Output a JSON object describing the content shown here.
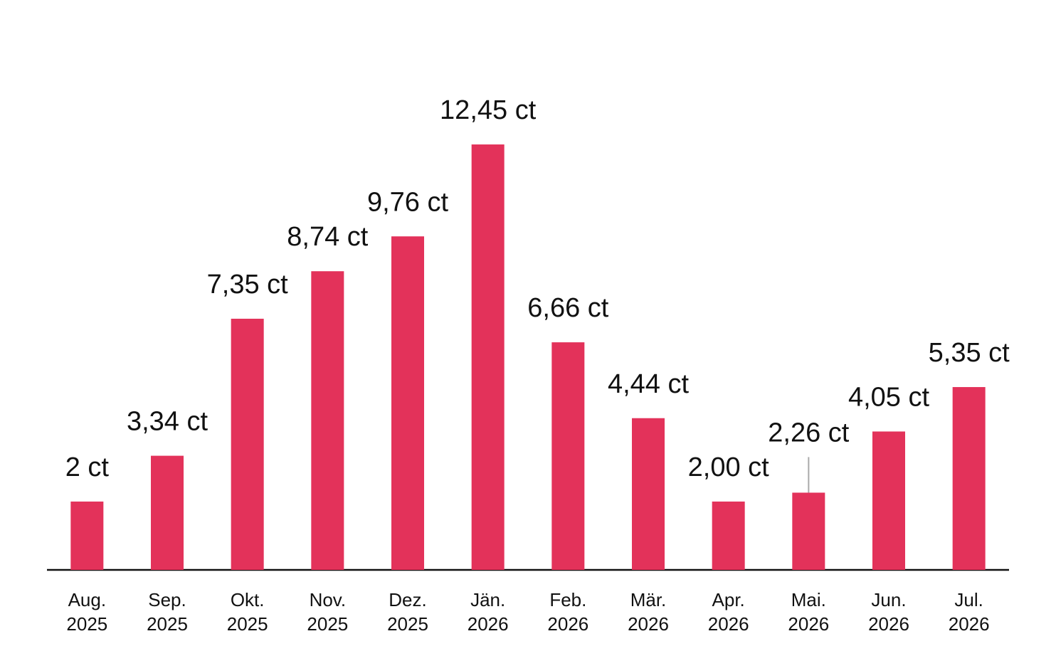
{
  "chart_data": {
    "type": "bar",
    "categories": [
      "Aug.\n2025",
      "Sep.\n2025",
      "Okt.\n2025",
      "Nov.\n2025",
      "Dez.\n2025",
      "Jän.\n2026",
      "Feb.\n2026",
      "Mär.\n2026",
      "Apr.\n2026",
      "Mai.\n2026",
      "Jun.\n2026",
      "Jul.\n2026"
    ],
    "values": [
      2,
      3.34,
      7.35,
      8.74,
      9.76,
      12.45,
      6.66,
      4.44,
      2.0,
      2.26,
      4.05,
      5.35
    ],
    "value_labels": [
      "2 ct",
      "3,34 ct",
      "7,35 ct",
      "8,74 ct",
      "9,76 ct",
      "12,45 ct",
      "6,66 ct",
      "4,44 ct",
      "2,00 ct",
      "2,26 ct",
      "4,05 ct",
      "5,35 ct"
    ],
    "color": "#e3325a"
  }
}
